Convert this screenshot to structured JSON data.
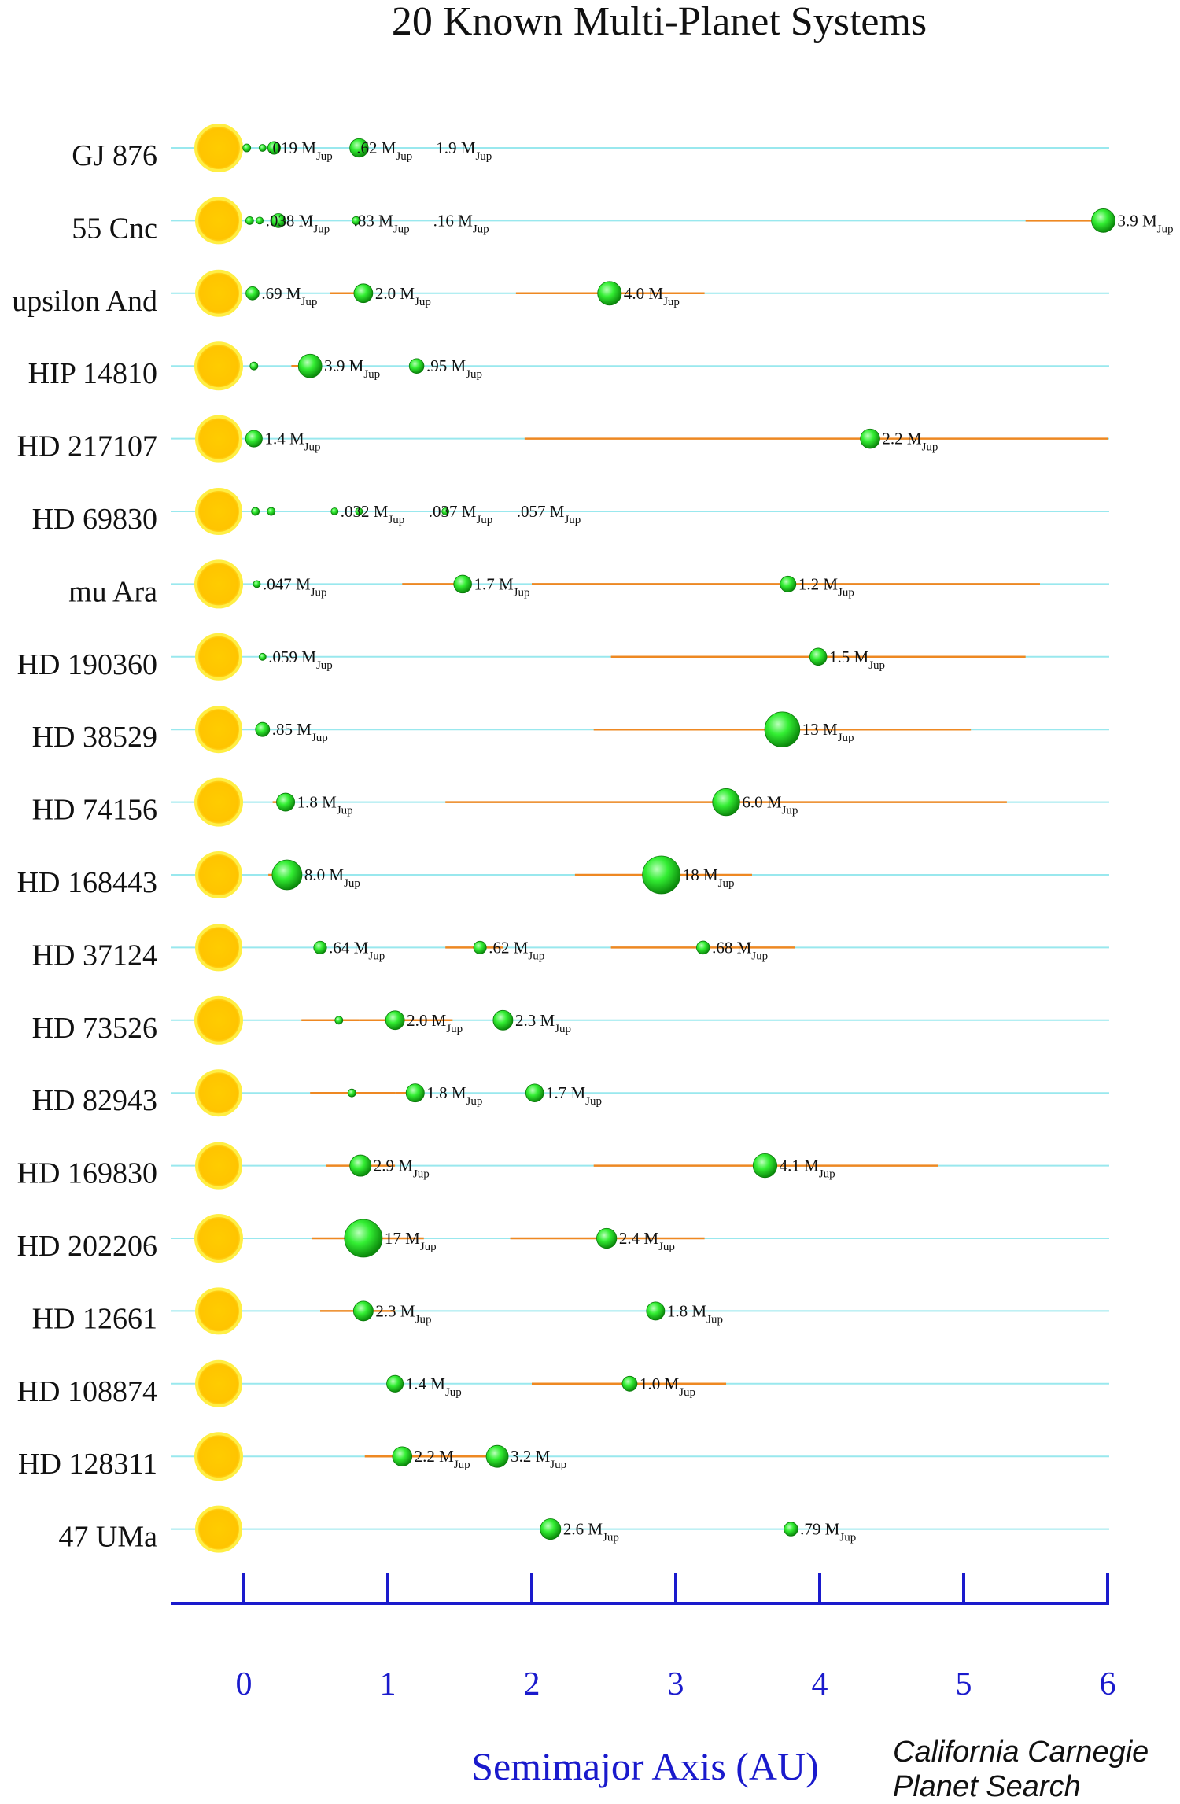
{
  "chart_data": {
    "type": "scatter",
    "title": "20 Known Multi-Planet Systems",
    "xlabel": "Semimajor Axis (AU)",
    "ylabel": "",
    "xlim": [
      0,
      6
    ],
    "xticks": [
      "0",
      "1",
      "2",
      "3",
      "4",
      "5",
      "6"
    ],
    "credit": "California Carnegie Planet Search",
    "mass_unit": "M",
    "mass_unit_sub": "Jup",
    "colors": {
      "star": "#ffcc00",
      "star_rim": "#ffee44",
      "planet": "#22dd22",
      "orbit_line": "#99e8ee",
      "eccentricity": "#ee8822",
      "axis": "#1a1acc"
    },
    "systems": [
      {
        "name": "GJ 876",
        "planets": [
          {
            "a": 0.02,
            "mass": null
          },
          {
            "a": 0.13,
            "mass": ".019"
          },
          {
            "a": 0.21,
            "mass": ".62"
          },
          {
            "a": 0.8,
            "mass": "1.9"
          }
        ]
      },
      {
        "name": "55 Cnc",
        "planets": [
          {
            "a": 0.04,
            "mass": null
          },
          {
            "a": 0.11,
            "mass": ".038"
          },
          {
            "a": 0.24,
            "mass": ".83"
          },
          {
            "a": 0.78,
            "mass": ".16"
          },
          {
            "a": 5.97,
            "mass": "3.9",
            "ecc": [
              5.43,
              5.97
            ]
          }
        ]
      },
      {
        "name": "upsilon And",
        "planets": [
          {
            "a": 0.06,
            "mass": ".69"
          },
          {
            "a": 0.83,
            "mass": "2.0",
            "ecc": [
              0.6,
              0.85
            ]
          },
          {
            "a": 2.54,
            "mass": "4.0",
            "ecc": [
              1.89,
              3.2
            ]
          }
        ]
      },
      {
        "name": "HIP 14810",
        "planets": [
          {
            "a": 0.07,
            "mass": null
          },
          {
            "a": 0.46,
            "mass": "3.9",
            "ecc": [
              0.33,
              0.46
            ]
          },
          {
            "a": 1.2,
            "mass": ".95"
          }
        ]
      },
      {
        "name": "HD 217107",
        "planets": [
          {
            "a": 0.07,
            "mass": "1.4"
          },
          {
            "a": 4.35,
            "mass": "2.2",
            "ecc": [
              1.95,
              6.0
            ]
          }
        ]
      },
      {
        "name": "HD 69830",
        "planets": [
          {
            "a": 0.08,
            "mass": null
          },
          {
            "a": 0.19,
            "mass": null
          },
          {
            "a": 0.63,
            "mass": ".032"
          },
          {
            "a": 0.8,
            "mass": ".037"
          },
          {
            "a": 1.4,
            "mass": ".057"
          }
        ]
      },
      {
        "name": "mu Ara",
        "planets": [
          {
            "a": 0.09,
            "mass": ".047"
          },
          {
            "a": 1.52,
            "mass": "1.7",
            "ecc": [
              1.1,
              1.55
            ]
          },
          {
            "a": 3.78,
            "mass": "1.2",
            "ecc": [
              2.0,
              5.53
            ]
          }
        ]
      },
      {
        "name": "HD 190360",
        "planets": [
          {
            "a": 0.13,
            "mass": ".059"
          },
          {
            "a": 3.99,
            "mass": "1.5",
            "ecc": [
              2.55,
              5.43
            ]
          }
        ]
      },
      {
        "name": "HD 38529",
        "planets": [
          {
            "a": 0.13,
            "mass": ".85"
          },
          {
            "a": 3.74,
            "mass": "13",
            "ecc": [
              2.43,
              5.05
            ]
          }
        ]
      },
      {
        "name": "HD 74156",
        "planets": [
          {
            "a": 0.29,
            "mass": "1.8",
            "ecc": [
              0.2,
              0.29
            ]
          },
          {
            "a": 3.35,
            "mass": "6.0",
            "ecc": [
              1.4,
              5.3
            ]
          }
        ]
      },
      {
        "name": "HD 168443",
        "planets": [
          {
            "a": 0.3,
            "mass": "8.0",
            "ecc": [
              0.17,
              0.3
            ]
          },
          {
            "a": 2.9,
            "mass": "18",
            "ecc": [
              2.3,
              3.53
            ]
          }
        ]
      },
      {
        "name": "HD 37124",
        "planets": [
          {
            "a": 0.53,
            "mass": ".64"
          },
          {
            "a": 1.64,
            "mass": ".62",
            "ecc": [
              1.4,
              1.8
            ]
          },
          {
            "a": 3.19,
            "mass": ".68",
            "ecc": [
              2.55,
              3.83
            ]
          }
        ]
      },
      {
        "name": "HD 73526",
        "planets": [
          {
            "a": 0.66,
            "mass": null,
            "ecc": [
              0.4,
              0.8
            ]
          },
          {
            "a": 1.05,
            "mass": "2.0",
            "ecc": [
              0.8,
              1.45
            ]
          },
          {
            "a": 1.8,
            "mass": "2.3"
          }
        ]
      },
      {
        "name": "HD 82943",
        "planets": [
          {
            "a": 0.75,
            "mass": null,
            "ecc": [
              0.46,
              1.05
            ]
          },
          {
            "a": 1.19,
            "mass": "1.8",
            "ecc": [
              1.05,
              1.19
            ]
          },
          {
            "a": 2.02,
            "mass": "1.7"
          }
        ]
      },
      {
        "name": "HD 169830",
        "planets": [
          {
            "a": 0.81,
            "mass": "2.9",
            "ecc": [
              0.57,
              1.05
            ]
          },
          {
            "a": 3.62,
            "mass": "4.1",
            "ecc": [
              2.43,
              4.82
            ]
          }
        ]
      },
      {
        "name": "HD 202206",
        "planets": [
          {
            "a": 0.83,
            "mass": "17",
            "ecc": [
              0.47,
              1.25
            ]
          },
          {
            "a": 2.52,
            "mass": "2.4",
            "ecc": [
              1.85,
              3.2
            ]
          }
        ]
      },
      {
        "name": "HD 12661",
        "planets": [
          {
            "a": 0.83,
            "mass": "2.3",
            "ecc": [
              0.53,
              1.05
            ]
          },
          {
            "a": 2.86,
            "mass": "1.8"
          }
        ]
      },
      {
        "name": "HD 108874",
        "planets": [
          {
            "a": 1.05,
            "mass": "1.4"
          },
          {
            "a": 2.68,
            "mass": "1.0",
            "ecc": [
              2.0,
              3.35
            ]
          }
        ]
      },
      {
        "name": "HD 128311",
        "planets": [
          {
            "a": 1.1,
            "mass": "2.2",
            "ecc": [
              0.84,
              1.3
            ]
          },
          {
            "a": 1.76,
            "mass": "3.2",
            "ecc": [
              1.3,
              1.76
            ]
          }
        ]
      },
      {
        "name": "47 UMa",
        "planets": [
          {
            "a": 2.13,
            "mass": "2.6"
          },
          {
            "a": 3.8,
            "mass": ".79"
          }
        ]
      }
    ]
  }
}
